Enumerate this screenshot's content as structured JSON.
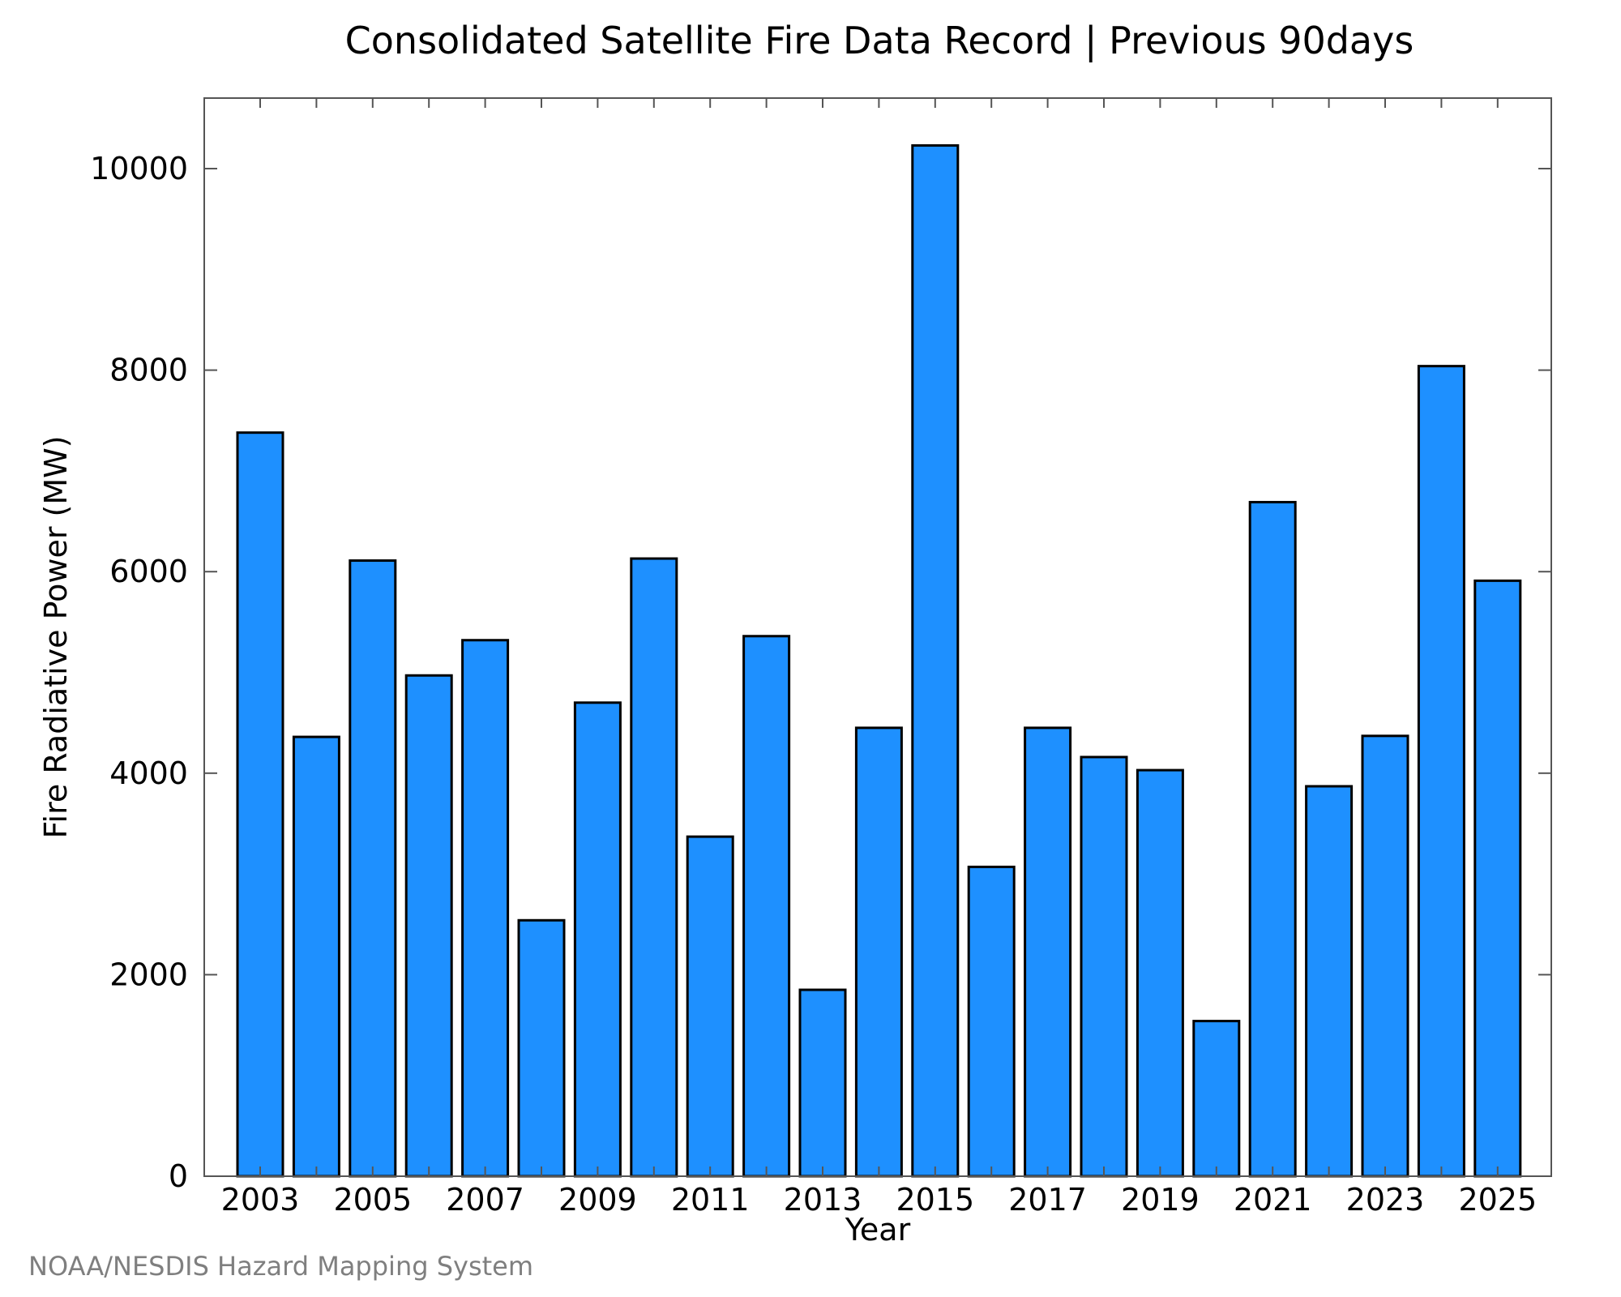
{
  "chart_data": {
    "type": "bar",
    "title": "Consolidated Satellite Fire Data Record | Previous 90days",
    "xlabel": "Year",
    "ylabel": "Fire Radiative Power (MW)",
    "ylim": [
      0,
      10700
    ],
    "yticks": [
      "0",
      "2000",
      "4000",
      "6000",
      "8000",
      "10000"
    ],
    "categories": [
      "2003",
      "2004",
      "2005",
      "2006",
      "2007",
      "2008",
      "2009",
      "2010",
      "2011",
      "2012",
      "2013",
      "2014",
      "2015",
      "2016",
      "2017",
      "2018",
      "2019",
      "2020",
      "2021",
      "2022",
      "2023",
      "2024",
      "2025"
    ],
    "xtick_labels": [
      "2003",
      "2005",
      "2007",
      "2009",
      "2011",
      "2013",
      "2015",
      "2017",
      "2019",
      "2021",
      "2023",
      "2025"
    ],
    "values": [
      7380,
      4360,
      6110,
      4970,
      5320,
      2540,
      4700,
      6130,
      3370,
      5360,
      1850,
      4450,
      10230,
      3070,
      4450,
      4160,
      4030,
      1540,
      6690,
      3870,
      4370,
      8040,
      5910
    ],
    "bar_color": "#1e90ff",
    "grid": false,
    "legend": "none"
  },
  "credit": "NOAA/NESDIS Hazard Mapping System"
}
